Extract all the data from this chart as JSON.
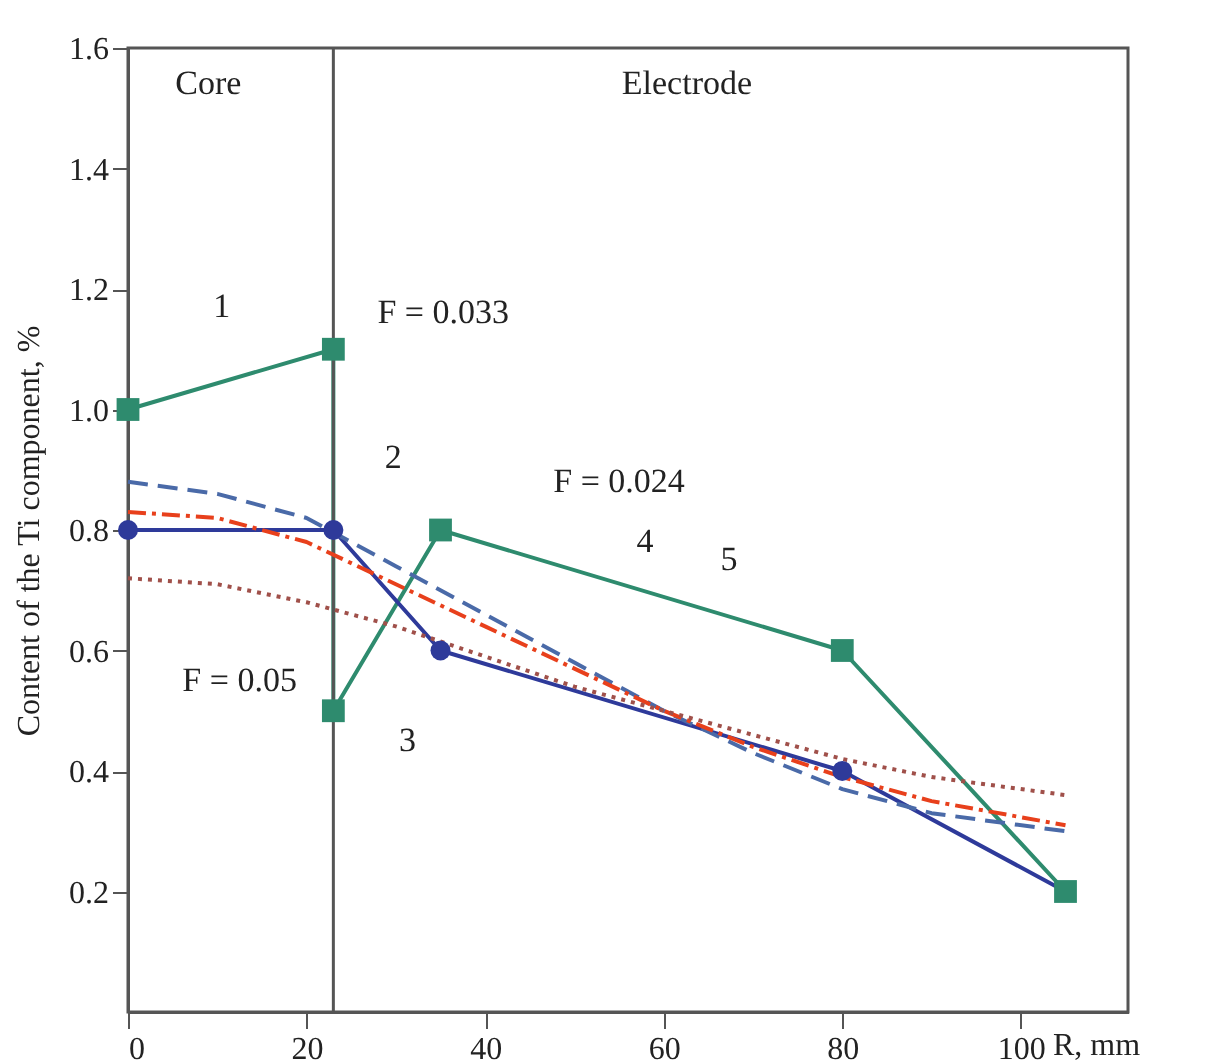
{
  "chart_data": {
    "type": "line",
    "xlabel": "R, mm",
    "ylabel": "Content of the Ti component, %",
    "xlim": [
      0,
      112
    ],
    "ylim": [
      0,
      1.6
    ],
    "xticks": [
      0,
      20,
      40,
      60,
      80,
      100
    ],
    "yticks": [
      0.2,
      0.4,
      0.6,
      0.8,
      {
        "value": 1,
        "label": "1.0"
      },
      1.2,
      1.4,
      1.6
    ],
    "grid": false,
    "ref_lines": [
      {
        "axis": "x",
        "value": 23,
        "color": "#555555"
      }
    ],
    "series": [
      {
        "color": "#2e8b6e",
        "marker": "square",
        "line_style": "solid",
        "x": [
          0,
          23,
          23,
          35,
          80,
          105
        ],
        "values": [
          1.0,
          1.1,
          0.5,
          0.8,
          0.6,
          0.2
        ]
      },
      {
        "color": "#2e3a9a",
        "marker": "circle",
        "line_style": "solid",
        "x": [
          0,
          23,
          35,
          80,
          105
        ],
        "values": [
          0.8,
          0.8,
          0.6,
          0.4,
          0.2
        ]
      },
      {
        "color": "#4a6aa8",
        "marker": "none",
        "line_style": "dashed",
        "x": [
          0,
          10,
          20,
          30,
          40,
          50,
          60,
          70,
          80,
          90,
          105
        ],
        "values": [
          0.88,
          0.86,
          0.82,
          0.74,
          0.66,
          0.58,
          0.5,
          0.43,
          0.37,
          0.33,
          0.3
        ]
      },
      {
        "color": "#e8401c",
        "marker": "none",
        "line_style": "dashdot",
        "x": [
          0,
          10,
          20,
          30,
          40,
          50,
          60,
          70,
          80,
          90,
          105
        ],
        "values": [
          0.83,
          0.82,
          0.78,
          0.71,
          0.64,
          0.57,
          0.5,
          0.44,
          0.39,
          0.35,
          0.31
        ]
      },
      {
        "color": "#a0504a",
        "marker": "none",
        "line_style": "dotted",
        "x": [
          0,
          10,
          20,
          30,
          40,
          50,
          60,
          70,
          80,
          90,
          105
        ],
        "values": [
          0.72,
          0.71,
          0.68,
          0.64,
          0.59,
          0.54,
          0.5,
          0.46,
          0.42,
          0.39,
          0.36
        ]
      }
    ],
    "annotations": [
      "Core",
      "Electrode",
      "1",
      "F = 0.033",
      "2",
      "F = 0.024",
      "4",
      "5",
      "F = 0.05",
      "3"
    ]
  }
}
